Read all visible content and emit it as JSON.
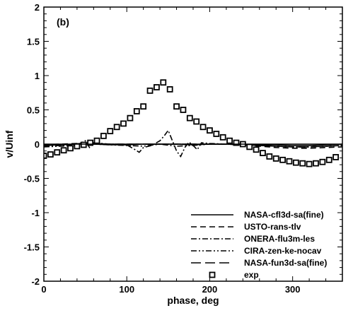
{
  "chart_data": {
    "type": "line",
    "panel_label": "(b)",
    "xlabel": "phase, deg",
    "ylabel": "v/Uinf",
    "xlim": [
      0,
      360
    ],
    "ylim": [
      -2,
      2
    ],
    "x_ticks": [
      0,
      100,
      200,
      300
    ],
    "x_tick_labels": [
      "0",
      "100",
      "200",
      "300"
    ],
    "y_ticks": [
      2,
      1.5,
      1,
      0.5,
      0,
      -0.5,
      -1,
      -1.5,
      -2
    ],
    "y_tick_labels": [
      "2",
      "1.5",
      "1",
      "0.5",
      "0",
      "-0.5",
      "-1",
      "-1.5",
      "-2"
    ],
    "grid": false,
    "legend_position": "bottom-right",
    "series": [
      {
        "name": "NASA-cfl3d-sa(fine)",
        "style": "solid",
        "color": "#000000",
        "x": [
          0,
          20,
          40,
          55,
          60,
          80,
          100,
          120,
          140,
          160,
          180,
          200,
          220,
          240,
          260,
          280,
          300,
          320,
          340,
          360
        ],
        "y": [
          -0.02,
          -0.01,
          0.0,
          0.02,
          0.0,
          -0.01,
          -0.01,
          0.0,
          0.0,
          0.0,
          -0.01,
          0.0,
          0.0,
          0.0,
          -0.01,
          -0.01,
          -0.02,
          -0.02,
          -0.01,
          0.0
        ]
      },
      {
        "name": "USTO-rans-tlv",
        "style": "dashed",
        "color": "#000000",
        "x": [
          0,
          20,
          40,
          60,
          80,
          100,
          120,
          140,
          160,
          180,
          200,
          220,
          240,
          260,
          280,
          300,
          320,
          340,
          360
        ],
        "y": [
          -0.01,
          0.0,
          0.01,
          0.01,
          0.0,
          0.0,
          0.0,
          0.0,
          0.0,
          0.0,
          0.0,
          0.0,
          -0.01,
          -0.03,
          -0.05,
          -0.06,
          -0.06,
          -0.05,
          -0.04
        ]
      },
      {
        "name": "ONERA-flu3m-les",
        "style": "dashdot",
        "color": "#000000",
        "x": [
          0,
          20,
          40,
          50,
          55,
          60,
          80,
          100,
          110,
          115,
          120,
          130,
          140,
          145,
          150,
          155,
          160,
          165,
          170,
          175,
          180,
          185,
          190,
          200,
          220,
          240,
          260,
          280,
          300,
          320,
          340,
          360
        ],
        "y": [
          -0.03,
          -0.02,
          -0.01,
          0.05,
          -0.05,
          0.02,
          0.0,
          -0.01,
          -0.08,
          -0.12,
          -0.05,
          -0.02,
          0.05,
          0.12,
          0.2,
          0.05,
          -0.1,
          -0.18,
          -0.05,
          0.03,
          -0.02,
          -0.08,
          0.02,
          0.01,
          0.0,
          -0.01,
          -0.02,
          -0.03,
          -0.04,
          -0.04,
          -0.03,
          -0.02
        ]
      },
      {
        "name": "CIRA-zen-ke-nocav",
        "style": "dashdotdot",
        "color": "#000000",
        "x": [
          0,
          20,
          40,
          60,
          80,
          100,
          120,
          140,
          160,
          180,
          200,
          220,
          240,
          260,
          280,
          300,
          320,
          340,
          360
        ],
        "y": [
          -0.04,
          -0.03,
          -0.02,
          0.0,
          -0.01,
          -0.02,
          -0.03,
          0.0,
          -0.03,
          -0.02,
          0.0,
          0.0,
          -0.01,
          -0.02,
          -0.03,
          -0.04,
          -0.04,
          -0.03,
          -0.02
        ]
      },
      {
        "name": "NASA-fun3d-sa(fine)",
        "style": "longdash",
        "color": "#000000",
        "x": [
          0,
          20,
          40,
          60,
          80,
          100,
          120,
          140,
          160,
          180,
          200,
          220,
          240,
          260,
          280,
          300,
          320,
          340,
          360
        ],
        "y": [
          -0.02,
          -0.01,
          0.0,
          0.0,
          0.0,
          0.0,
          0.0,
          0.0,
          0.0,
          0.0,
          0.0,
          0.0,
          -0.01,
          -0.02,
          -0.03,
          -0.04,
          -0.04,
          -0.03,
          -0.02
        ]
      },
      {
        "name": "exp",
        "style": "open-square-markers",
        "color": "#000000",
        "x": [
          0,
          8,
          16,
          24,
          32,
          40,
          48,
          56,
          64,
          72,
          80,
          88,
          96,
          104,
          112,
          120,
          128,
          136,
          144,
          152,
          160,
          168,
          176,
          184,
          192,
          200,
          208,
          216,
          224,
          232,
          240,
          248,
          256,
          264,
          272,
          280,
          288,
          296,
          304,
          312,
          320,
          328,
          336,
          344,
          352
        ],
        "y": [
          -0.17,
          -0.15,
          -0.12,
          -0.09,
          -0.06,
          -0.03,
          -0.01,
          0.02,
          0.05,
          0.12,
          0.19,
          0.25,
          0.3,
          0.38,
          0.48,
          0.55,
          0.78,
          0.83,
          0.9,
          0.8,
          0.55,
          0.5,
          0.38,
          0.33,
          0.25,
          0.2,
          0.15,
          0.1,
          0.05,
          0.02,
          0.0,
          -0.04,
          -0.08,
          -0.13,
          -0.18,
          -0.21,
          -0.23,
          -0.25,
          -0.27,
          -0.28,
          -0.29,
          -0.28,
          -0.26,
          -0.23,
          -0.19
        ]
      }
    ]
  }
}
